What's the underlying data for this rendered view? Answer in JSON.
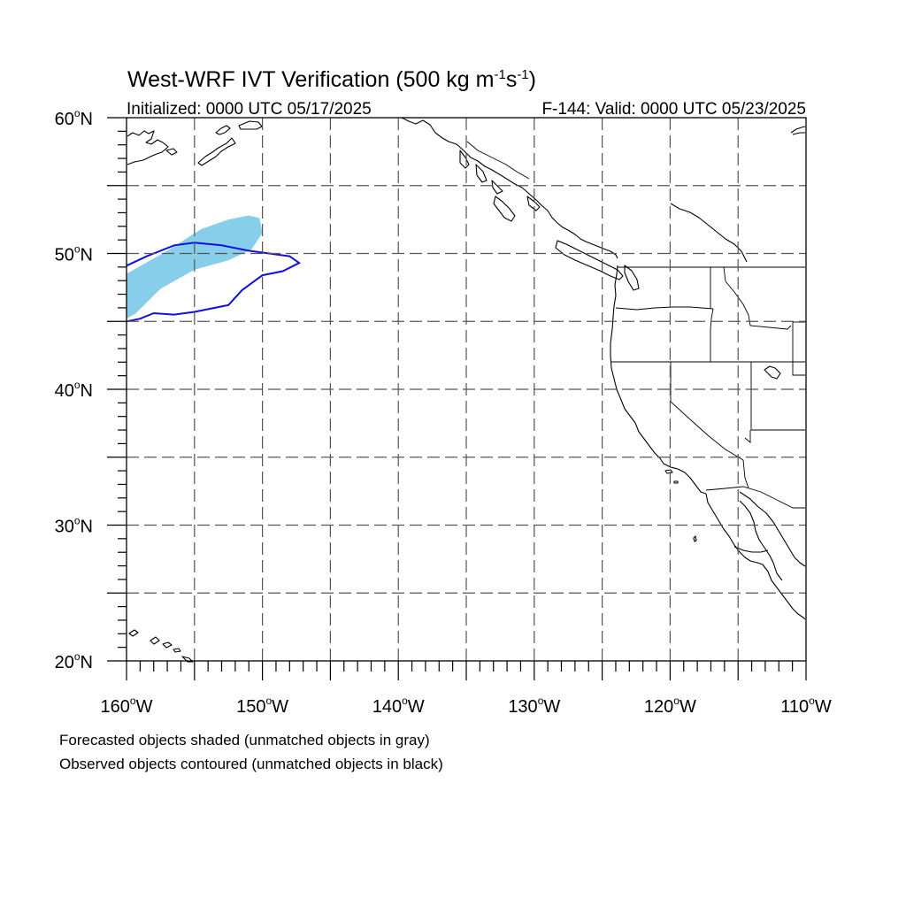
{
  "title": {
    "main": "West-WRF IVT Verification (500 kg m",
    "sup1": "-1",
    "mid": "s",
    "sup2": "-1",
    "end": ")"
  },
  "subtitle_left": "Initialized: 0000 UTC 05/17/2025",
  "subtitle_right": "F-144: Valid: 0000 UTC 05/23/2025",
  "lat_ticks": [
    {
      "value": 60,
      "label": "60"
    },
    {
      "value": 50,
      "label": "50"
    },
    {
      "value": 40,
      "label": "40"
    },
    {
      "value": 30,
      "label": "30"
    },
    {
      "value": 20,
      "label": "20"
    }
  ],
  "lat_suffix": "N",
  "lon_ticks": [
    {
      "value": -160,
      "label": "160"
    },
    {
      "value": -150,
      "label": "150"
    },
    {
      "value": -140,
      "label": "140"
    },
    {
      "value": -130,
      "label": "130"
    },
    {
      "value": -120,
      "label": "120"
    },
    {
      "value": -110,
      "label": "110"
    }
  ],
  "lon_suffix": "W",
  "degree_mark": "o",
  "legend": {
    "line1": "Forecasted objects shaded (unmatched objects in gray)",
    "line2": "Observed objects contoured (unmatched objects in black)"
  },
  "colors": {
    "forecast_fill": "#87ceeb",
    "observed_contour": "#1010dd"
  },
  "map_extent": {
    "lon": [
      -160,
      -110
    ],
    "lat": [
      20,
      60
    ]
  },
  "forecast_object": [
    [
      -160,
      48.5
    ],
    [
      -157,
      50.2
    ],
    [
      -154.5,
      51.8
    ],
    [
      -152.5,
      52.5
    ],
    [
      -151,
      52.8
    ],
    [
      -150.2,
      52.6
    ],
    [
      -150,
      51.5
    ],
    [
      -150.8,
      50.3
    ],
    [
      -152.5,
      49.5
    ],
    [
      -155,
      48.8
    ],
    [
      -157.5,
      47.4
    ],
    [
      -159.3,
      45.6
    ],
    [
      -160,
      45.2
    ]
  ],
  "observed_object": [
    [
      -160,
      49.1
    ],
    [
      -158.5,
      49.8
    ],
    [
      -156.5,
      50.6
    ],
    [
      -155,
      50.8
    ],
    [
      -153,
      50.6
    ],
    [
      -151,
      50.2
    ],
    [
      -149.5,
      50
    ],
    [
      -148,
      49.8
    ],
    [
      -147.3,
      49.3
    ],
    [
      -148.5,
      48.7
    ],
    [
      -150,
      48.4
    ],
    [
      -151.5,
      47.3
    ],
    [
      -152.5,
      46.2
    ],
    [
      -153.5,
      46
    ],
    [
      -155,
      45.7
    ],
    [
      -156.5,
      45.5
    ],
    [
      -158,
      45.6
    ],
    [
      -159,
      45.2
    ],
    [
      -160,
      45
    ]
  ]
}
